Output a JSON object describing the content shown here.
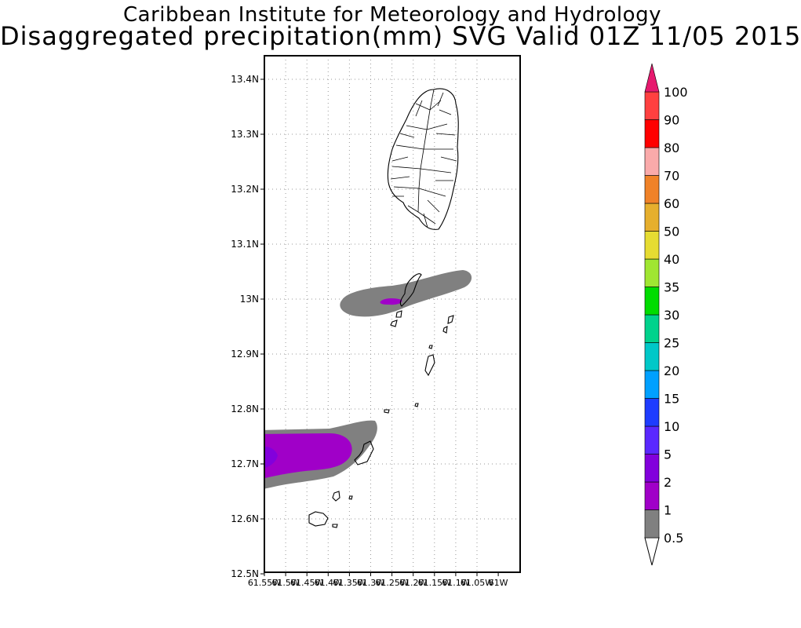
{
  "titles": {
    "line1": "Caribbean Institute for Meteorology and Hydrology",
    "line2": "Disaggregated precipitation(mm) SVG Valid 01Z 11/05 2015"
  },
  "map": {
    "lat_labels": [
      "13.4N",
      "13.3N",
      "13.2N",
      "13.1N",
      "13N",
      "12.9N",
      "12.8N",
      "12.7N",
      "12.6N",
      "12.5N"
    ],
    "lon_labels": [
      "61.55W",
      "61.5W",
      "61.45W",
      "61.4W",
      "61.35W",
      "61.3W",
      "61.25W",
      "61.2W",
      "61.15W",
      "61.1W",
      "61.05W",
      "61W"
    ],
    "grid": "dotted"
  },
  "legend": {
    "thresholds": [
      "0.5",
      "1",
      "2",
      "5",
      "10",
      "15",
      "20",
      "25",
      "30",
      "35",
      "40",
      "50",
      "60",
      "70",
      "80",
      "90",
      "100"
    ],
    "colors": [
      "#808080",
      "#a000c8",
      "#8200dc",
      "#5a28ff",
      "#1e3cff",
      "#00a0ff",
      "#00c8c8",
      "#00d28c",
      "#00dc00",
      "#a0e632",
      "#e6dc32",
      "#e6af2d",
      "#f08228",
      "#faaaaa",
      "#ff0000",
      "#ff4040",
      "#e6196e"
    ]
  }
}
